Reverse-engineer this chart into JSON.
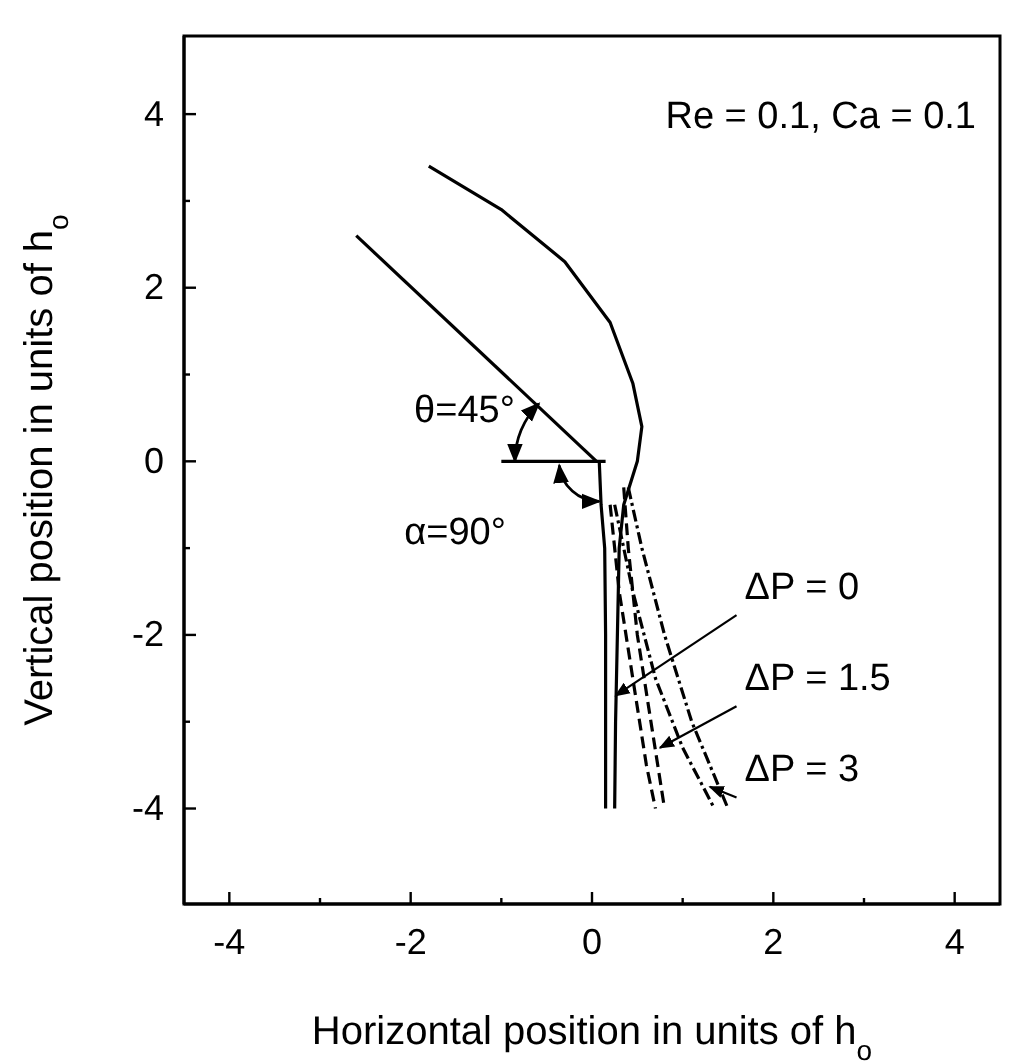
{
  "chart_data": {
    "type": "line",
    "xlabel": "Horizontal position in units of h$_{o}$",
    "ylabel": "Vertical position in units of h$_{o}$",
    "xlim": [
      -4.5,
      4.5
    ],
    "ylim": [
      -5.1,
      4.9
    ],
    "xticks": [
      -4,
      {
        "value": -3,
        "label": null
      },
      -2,
      {
        "value": -1,
        "label": null
      },
      0,
      {
        "value": 1,
        "label": null
      },
      2,
      {
        "value": 3,
        "label": null
      },
      4
    ],
    "yticks": [
      -4,
      {
        "value": -3,
        "label": null
      },
      -2,
      {
        "value": -1,
        "label": null
      },
      0,
      {
        "value": 1,
        "label": null
      },
      2,
      {
        "value": 3,
        "label": null
      },
      4
    ],
    "grid": false,
    "marker": "none",
    "series": [
      {
        "color": "#000000",
        "line_style": "solid",
        "x": [
          -2.6,
          0.05
        ],
        "values": [
          2.6,
          0
        ]
      },
      {
        "color": "#000000",
        "line_style": "solid",
        "x": [
          -1.0,
          0.15
        ],
        "values": [
          0,
          0
        ]
      },
      {
        "color": "#000000",
        "line_style": "solid",
        "x": [
          0.08,
          0.1,
          0.14,
          0.15,
          0.15
        ],
        "values": [
          0,
          -0.5,
          -1.0,
          -2.0,
          -4.0
        ]
      },
      {
        "color": "#000000",
        "line_style": "solid",
        "x": [
          -1.8,
          -1.0,
          -0.3,
          0.2,
          0.45,
          0.55,
          0.5,
          0.35,
          0.3,
          0.28,
          0.26,
          0.25
        ],
        "values": [
          3.4,
          2.9,
          2.3,
          1.6,
          0.9,
          0.4,
          0,
          -0.5,
          -1.0,
          -2.0,
          -3.0,
          -4.0
        ]
      },
      {
        "color": "#000000",
        "line_style": "dashed",
        "x": [
          0.35,
          0.4,
          0.5,
          0.65,
          0.8
        ],
        "values": [
          -0.3,
          -1.0,
          -2.0,
          -3.0,
          -4.0
        ]
      },
      {
        "color": "#000000",
        "line_style": "dashed",
        "x": [
          0.2,
          0.3,
          0.45,
          0.6,
          0.7
        ],
        "values": [
          -0.5,
          -1.5,
          -2.5,
          -3.5,
          -4.0
        ]
      },
      {
        "color": "#000000",
        "line_style": "dotted",
        "x": [
          0.4,
          0.55,
          0.8,
          1.1,
          1.5
        ],
        "values": [
          -0.3,
          -1.0,
          -2.0,
          -3.0,
          -4.0
        ]
      },
      {
        "color": "#000000",
        "line_style": "dotted",
        "x": [
          0.25,
          0.45,
          0.7,
          1.0,
          1.35
        ],
        "values": [
          -0.5,
          -1.5,
          -2.5,
          -3.3,
          -4.0
        ]
      }
    ],
    "annotations": [
      "Re = 0.1, Ca = 0.1",
      "θ=45°",
      "α=90°",
      {
        "text": "ΔP = 0",
        "x": 0.26,
        "y": -2.7
      },
      {
        "text": "ΔP = 1.5",
        "x": 0.75,
        "y": -3.3
      },
      {
        "text": "ΔP = 3",
        "x": 1.3,
        "y": -3.75
      }
    ]
  }
}
